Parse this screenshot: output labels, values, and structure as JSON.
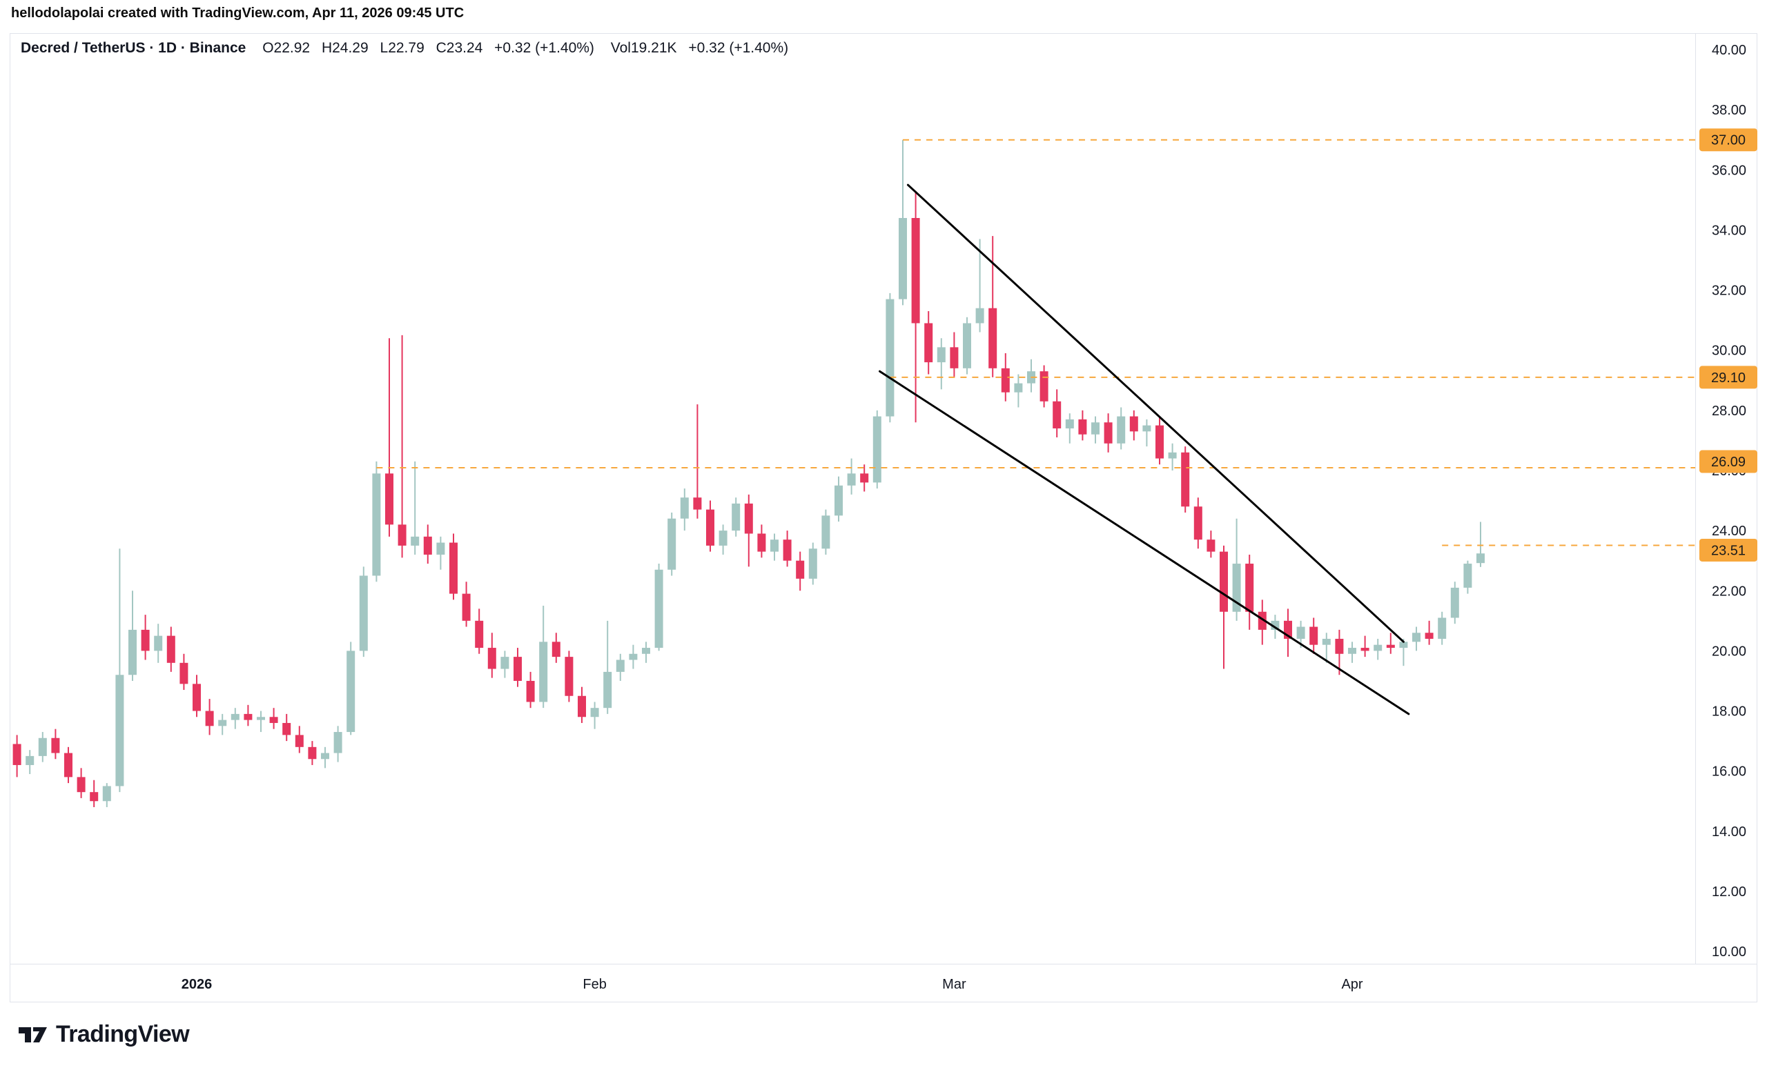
{
  "attribution": "hellodolapolai created with TradingView.com, Apr 11, 2026 09:45 UTC",
  "legend": {
    "title": "Decred / TetherUS · 1D · Binance",
    "open": "O22.92",
    "high": "H24.29",
    "low": "L22.79",
    "close": "C23.24",
    "change": "+0.32 (+1.40%)",
    "volume": "Vol19.21K",
    "volume_change": "+0.32 (+1.40%)"
  },
  "logo_text": "TradingView",
  "chart_data": {
    "type": "candlestick",
    "symbol": "Decred / TetherUS",
    "interval": "1D",
    "exchange": "Binance",
    "title": "Decred / TetherUS · 1D · Binance",
    "last_ohlc": {
      "open": 22.92,
      "high": 24.29,
      "low": 22.79,
      "close": 23.24,
      "change": 0.32,
      "change_pct": 1.4,
      "volume": "19.21K"
    },
    "ylim": [
      9.6,
      41.4
    ],
    "grid": false,
    "legend_position": "top-left",
    "up_color": "#a3c6c2",
    "down_color": "#e5365e",
    "line_color": "#f7a73c",
    "trend_color": "#000000",
    "axis_text_color": "#131722",
    "y_ticks": [
      {
        "label": "40.00",
        "value": 40
      },
      {
        "label": "38.00",
        "value": 38
      },
      {
        "label": "36.00",
        "value": 36
      },
      {
        "label": "34.00",
        "value": 34
      },
      {
        "label": "32.00",
        "value": 32
      },
      {
        "label": "30.00",
        "value": 30
      },
      {
        "label": "28.00",
        "value": 28
      },
      {
        "label": "26.00",
        "value": 26
      },
      {
        "label": "24.00",
        "value": 24
      },
      {
        "label": "22.00",
        "value": 22
      },
      {
        "label": "20.00",
        "value": 20
      },
      {
        "label": "18.00",
        "value": 18
      },
      {
        "label": "16.00",
        "value": 16
      },
      {
        "label": "14.00",
        "value": 14
      },
      {
        "label": "12.00",
        "value": 12
      },
      {
        "label": "10.00",
        "value": 10
      }
    ],
    "x_ticks": [
      {
        "label": "2026",
        "index": 14,
        "bold": true
      },
      {
        "label": "Feb",
        "index": 45,
        "bold": false
      },
      {
        "label": "Mar",
        "index": 73,
        "bold": false
      },
      {
        "label": "Apr",
        "index": 104,
        "bold": false
      }
    ],
    "horizontal_lines": [
      {
        "label": "37.00",
        "price": 37.0,
        "start_index": 69
      },
      {
        "label": "29.10",
        "price": 29.1,
        "start_index": 68
      },
      {
        "label": "26.09",
        "price": 26.09,
        "start_index": 28
      },
      {
        "label": "23.51",
        "price": 23.51,
        "start_index": 111
      }
    ],
    "trend_lines": [
      {
        "from_index": 69.4,
        "from_price": 35.5,
        "to_index": 108.0,
        "to_price": 20.3
      },
      {
        "from_index": 67.2,
        "from_price": 29.3,
        "to_index": 108.4,
        "to_price": 17.9
      }
    ],
    "candles": [
      [
        16.9,
        17.2,
        15.8,
        16.2
      ],
      [
        16.2,
        16.7,
        15.9,
        16.5
      ],
      [
        16.5,
        17.3,
        16.3,
        17.1
      ],
      [
        17.1,
        17.4,
        16.4,
        16.6
      ],
      [
        16.6,
        16.8,
        15.6,
        15.8
      ],
      [
        15.8,
        16.1,
        15.1,
        15.3
      ],
      [
        15.3,
        15.7,
        14.8,
        15.0
      ],
      [
        15.0,
        15.6,
        14.8,
        15.5
      ],
      [
        15.5,
        23.4,
        15.3,
        19.2
      ],
      [
        19.2,
        22.0,
        19.0,
        20.7
      ],
      [
        20.7,
        21.2,
        19.7,
        20.0
      ],
      [
        20.0,
        20.9,
        19.6,
        20.5
      ],
      [
        20.5,
        20.8,
        19.3,
        19.6
      ],
      [
        19.6,
        19.9,
        18.7,
        18.9
      ],
      [
        18.9,
        19.2,
        17.8,
        18.0
      ],
      [
        18.0,
        18.4,
        17.2,
        17.5
      ],
      [
        17.5,
        17.9,
        17.2,
        17.7
      ],
      [
        17.7,
        18.1,
        17.4,
        17.9
      ],
      [
        17.9,
        18.2,
        17.5,
        17.7
      ],
      [
        17.7,
        18.0,
        17.3,
        17.8
      ],
      [
        17.8,
        18.1,
        17.4,
        17.6
      ],
      [
        17.6,
        17.9,
        17.0,
        17.2
      ],
      [
        17.2,
        17.5,
        16.6,
        16.8
      ],
      [
        16.8,
        17.0,
        16.2,
        16.4
      ],
      [
        16.4,
        16.8,
        16.1,
        16.6
      ],
      [
        16.6,
        17.5,
        16.3,
        17.3
      ],
      [
        17.3,
        20.3,
        17.2,
        20.0
      ],
      [
        20.0,
        22.8,
        19.8,
        22.5
      ],
      [
        22.5,
        26.3,
        22.3,
        25.9
      ],
      [
        25.9,
        30.4,
        23.8,
        24.2
      ],
      [
        24.2,
        30.5,
        23.1,
        23.5
      ],
      [
        23.5,
        26.3,
        23.2,
        23.8
      ],
      [
        23.8,
        24.2,
        22.9,
        23.2
      ],
      [
        23.2,
        23.8,
        22.7,
        23.6
      ],
      [
        23.6,
        23.9,
        21.7,
        21.9
      ],
      [
        21.9,
        22.3,
        20.8,
        21.0
      ],
      [
        21.0,
        21.4,
        19.9,
        20.1
      ],
      [
        20.1,
        20.6,
        19.1,
        19.4
      ],
      [
        19.4,
        20.0,
        19.1,
        19.8
      ],
      [
        19.8,
        20.1,
        18.8,
        19.0
      ],
      [
        19.0,
        19.3,
        18.1,
        18.3
      ],
      [
        18.3,
        21.5,
        18.1,
        20.3
      ],
      [
        20.3,
        20.6,
        19.6,
        19.8
      ],
      [
        19.8,
        20.0,
        18.3,
        18.5
      ],
      [
        18.5,
        18.8,
        17.6,
        17.8
      ],
      [
        17.8,
        18.3,
        17.4,
        18.1
      ],
      [
        18.1,
        21.0,
        17.9,
        19.3
      ],
      [
        19.3,
        19.9,
        19.0,
        19.7
      ],
      [
        19.7,
        20.2,
        19.4,
        19.9
      ],
      [
        19.9,
        20.3,
        19.6,
        20.1
      ],
      [
        20.1,
        22.9,
        20.0,
        22.7
      ],
      [
        22.7,
        24.6,
        22.5,
        24.4
      ],
      [
        24.4,
        25.4,
        24.0,
        25.1
      ],
      [
        25.1,
        28.2,
        24.4,
        24.7
      ],
      [
        24.7,
        25.0,
        23.3,
        23.5
      ],
      [
        23.5,
        24.2,
        23.2,
        24.0
      ],
      [
        24.0,
        25.1,
        23.8,
        24.9
      ],
      [
        24.9,
        25.2,
        22.8,
        23.9
      ],
      [
        23.9,
        24.2,
        23.1,
        23.3
      ],
      [
        23.3,
        23.9,
        23.0,
        23.7
      ],
      [
        23.7,
        24.0,
        22.8,
        23.0
      ],
      [
        23.0,
        23.3,
        22.0,
        22.4
      ],
      [
        22.4,
        23.6,
        22.2,
        23.4
      ],
      [
        23.4,
        24.7,
        23.2,
        24.5
      ],
      [
        24.5,
        25.8,
        24.3,
        25.5
      ],
      [
        25.5,
        26.4,
        25.2,
        25.9
      ],
      [
        25.9,
        26.2,
        25.3,
        25.6
      ],
      [
        25.6,
        28.0,
        25.4,
        27.8
      ],
      [
        27.8,
        31.9,
        27.6,
        31.7
      ],
      [
        31.7,
        37.0,
        31.5,
        34.4
      ],
      [
        34.4,
        35.3,
        27.6,
        30.9
      ],
      [
        30.9,
        31.3,
        29.2,
        29.6
      ],
      [
        29.6,
        30.4,
        28.7,
        30.1
      ],
      [
        30.1,
        30.6,
        29.1,
        29.4
      ],
      [
        29.4,
        31.1,
        29.2,
        30.9
      ],
      [
        30.9,
        33.7,
        30.6,
        31.4
      ],
      [
        31.4,
        33.8,
        29.1,
        29.4
      ],
      [
        29.4,
        29.9,
        28.3,
        28.6
      ],
      [
        28.6,
        29.2,
        28.1,
        28.9
      ],
      [
        28.9,
        29.7,
        28.6,
        29.3
      ],
      [
        29.3,
        29.5,
        28.1,
        28.3
      ],
      [
        28.3,
        28.7,
        27.1,
        27.4
      ],
      [
        27.4,
        27.9,
        26.9,
        27.7
      ],
      [
        27.7,
        28.0,
        27.0,
        27.2
      ],
      [
        27.2,
        27.8,
        26.9,
        27.6
      ],
      [
        27.6,
        27.9,
        26.6,
        26.9
      ],
      [
        26.9,
        28.1,
        26.7,
        27.8
      ],
      [
        27.8,
        28.0,
        27.0,
        27.3
      ],
      [
        27.3,
        27.7,
        26.8,
        27.5
      ],
      [
        27.5,
        27.8,
        26.2,
        26.4
      ],
      [
        26.4,
        26.9,
        26.0,
        26.6
      ],
      [
        26.6,
        26.8,
        24.6,
        24.8
      ],
      [
        24.8,
        25.1,
        23.4,
        23.7
      ],
      [
        23.7,
        24.0,
        23.1,
        23.3
      ],
      [
        23.3,
        23.5,
        19.4,
        21.3
      ],
      [
        21.3,
        24.4,
        21.0,
        22.9
      ],
      [
        22.9,
        23.2,
        20.7,
        21.3
      ],
      [
        21.3,
        21.7,
        20.2,
        20.7
      ],
      [
        20.7,
        21.2,
        20.4,
        21.0
      ],
      [
        21.0,
        21.4,
        19.8,
        20.4
      ],
      [
        20.4,
        21.0,
        20.1,
        20.8
      ],
      [
        20.8,
        21.1,
        19.9,
        20.2
      ],
      [
        20.2,
        20.6,
        19.6,
        20.4
      ],
      [
        20.4,
        20.7,
        19.2,
        19.9
      ],
      [
        19.9,
        20.3,
        19.6,
        20.1
      ],
      [
        20.1,
        20.5,
        19.8,
        20.0
      ],
      [
        20.0,
        20.4,
        19.7,
        20.2
      ],
      [
        20.2,
        20.6,
        19.9,
        20.1
      ],
      [
        20.1,
        20.4,
        19.5,
        20.3
      ],
      [
        20.3,
        20.8,
        20.0,
        20.6
      ],
      [
        20.6,
        21.0,
        20.2,
        20.4
      ],
      [
        20.4,
        21.3,
        20.2,
        21.1
      ],
      [
        21.1,
        22.3,
        20.9,
        22.1
      ],
      [
        22.1,
        23.0,
        21.9,
        22.9
      ],
      [
        22.92,
        24.29,
        22.79,
        23.24
      ]
    ]
  }
}
